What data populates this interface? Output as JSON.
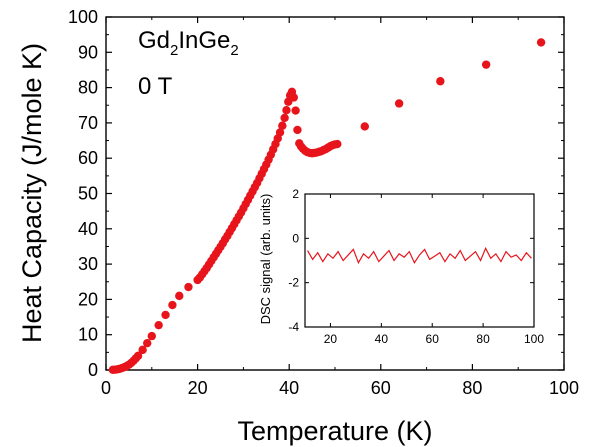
{
  "chart_data": [
    {
      "type": "scatter",
      "title": "",
      "xlabel": "Temperature (K)",
      "ylabel": "Heat Capacity (J/mole K)",
      "xlim": [
        0,
        100
      ],
      "ylim": [
        0,
        100
      ],
      "xticks": [
        0,
        20,
        40,
        60,
        80,
        100
      ],
      "yticks": [
        0,
        10,
        20,
        30,
        40,
        50,
        60,
        70,
        80,
        90,
        100
      ],
      "annotation": {
        "formula_base": "Gd",
        "sub1": "2",
        "mid": "InGe",
        "sub2": "2",
        "field": "0 T"
      },
      "grid": false,
      "marker_color": "#e8141c",
      "series": [
        {
          "x": [
            1.5,
            2.0,
            2.5,
            3.0,
            3.5,
            4.0,
            4.5,
            5.0,
            5.5,
            6.0,
            6.5,
            7.0,
            8.0,
            9.0,
            10.0,
            11.5,
            13.0,
            14.5,
            16.0,
            18.0,
            20.0,
            20.5,
            21.0,
            21.5,
            22.0,
            22.5,
            23.0,
            23.5,
            24.0,
            24.5,
            25.0,
            25.5,
            26.0,
            26.5,
            27.0,
            27.5,
            28.0,
            28.5,
            29.0,
            29.5,
            30.0,
            30.5,
            31.0,
            31.5,
            32.0,
            32.5,
            33.0,
            33.5,
            34.0,
            34.5,
            35.0,
            35.5,
            36.0,
            36.5,
            37.0,
            37.5,
            38.0,
            38.5,
            39.0,
            39.4,
            39.8,
            40.2,
            40.6,
            41.0,
            41.4,
            41.8,
            42.2,
            42.6,
            43.0,
            43.5,
            44.0,
            44.5,
            45.0,
            45.5,
            46.0,
            46.5,
            47.0,
            47.5,
            48.0,
            48.5,
            49.0,
            49.5,
            50.0,
            50.5,
            56.5,
            64.0,
            73.0,
            83.0,
            95.0
          ],
          "y": [
            0.05,
            0.1,
            0.2,
            0.35,
            0.55,
            0.8,
            1.1,
            1.5,
            2.0,
            2.6,
            3.3,
            4.0,
            5.7,
            7.6,
            9.6,
            12.7,
            15.6,
            18.4,
            21.0,
            23.5,
            25.5,
            26.2,
            27.1,
            28.0,
            28.9,
            29.9,
            30.9,
            31.9,
            32.9,
            33.9,
            34.9,
            35.9,
            37.0,
            38.0,
            39.1,
            40.2,
            41.3,
            42.4,
            43.5,
            44.6,
            45.8,
            47.0,
            48.2,
            49.4,
            50.6,
            51.8,
            53.0,
            54.3,
            55.6,
            56.9,
            58.2,
            59.6,
            61.0,
            62.5,
            64.0,
            65.6,
            67.3,
            69.2,
            71.4,
            73.6,
            76.0,
            77.8,
            78.8,
            77.2,
            73.5,
            68.0,
            64.2,
            63.3,
            62.7,
            62.1,
            61.7,
            61.5,
            61.4,
            61.5,
            61.6,
            61.8,
            62.0,
            62.3,
            62.6,
            63.0,
            63.4,
            63.7,
            63.9,
            64.0,
            69.0,
            75.5,
            81.8,
            86.5,
            92.8
          ]
        }
      ]
    },
    {
      "type": "line",
      "title": "",
      "xlabel": "",
      "ylabel": "DSC signal (arb. units)",
      "xlim": [
        10,
        100
      ],
      "ylim": [
        -4,
        2
      ],
      "xticks": [
        20,
        40,
        60,
        80,
        100
      ],
      "yticks": [
        -4,
        -2,
        0,
        2
      ],
      "line_color": "#e8141c",
      "series": [
        {
          "x": [
            11,
            13,
            15,
            17,
            19,
            21,
            23,
            25,
            27,
            29,
            31,
            33,
            35,
            37,
            39,
            41,
            43,
            45,
            47,
            49,
            51,
            53,
            55,
            57,
            59,
            61,
            63,
            65,
            67,
            69,
            71,
            73,
            75,
            77,
            79,
            81,
            83,
            85,
            87,
            89,
            91,
            93,
            95,
            97,
            99
          ],
          "y": [
            -0.55,
            -0.95,
            -0.65,
            -1.05,
            -0.7,
            -0.9,
            -0.6,
            -1.0,
            -0.75,
            -0.5,
            -1.1,
            -0.7,
            -0.9,
            -0.6,
            -1.05,
            -0.8,
            -0.55,
            -1.0,
            -0.7,
            -0.85,
            -0.6,
            -1.1,
            -0.75,
            -0.5,
            -0.95,
            -0.8,
            -0.65,
            -1.05,
            -0.7,
            -0.9,
            -0.55,
            -1.0,
            -0.8,
            -0.6,
            -1.0,
            -0.45,
            -0.9,
            -0.7,
            -1.05,
            -0.6,
            -0.85,
            -0.75,
            -1.0,
            -0.65,
            -0.9
          ]
        }
      ]
    }
  ]
}
